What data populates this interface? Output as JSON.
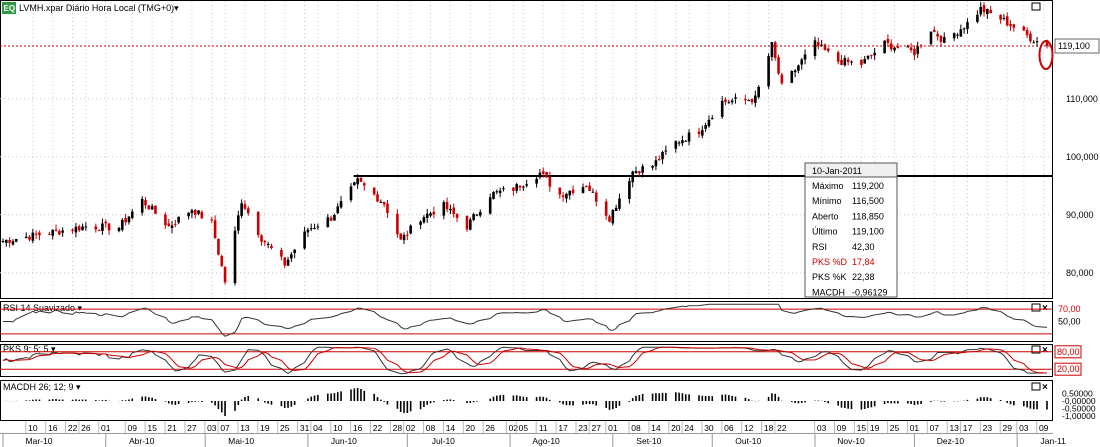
{
  "colors": {
    "bull": "#000000",
    "bear": "#cc0000",
    "rsi_line": "#333333",
    "pks_k": "#333333",
    "pks_d": "#cc0000",
    "ref_line": "#cc0000",
    "support_line": "#000000",
    "price_tag_border": "#666666",
    "highlight_circle": "#cc0000",
    "logo": "#2e9b44"
  },
  "header": {
    "logo": "EQ",
    "title": "LVMH.xpar Diário Hora Local (TMG+0)▾"
  },
  "chart_data": [
    {
      "type": "candlestick",
      "name": "price",
      "ylim": [
        76000,
        126000
      ],
      "yticks": [
        80000,
        90000,
        100000,
        110000
      ],
      "ytick_labels": [
        "80,000",
        "90,000",
        "100,000",
        "110,000"
      ],
      "last_price": 119100,
      "last_price_label": "119,100",
      "support_level": 96700,
      "support_start_date": "2010-06-16",
      "anchors": [
        [
          "2010-03-01",
          85500
        ],
        [
          "2010-03-16",
          87000
        ],
        [
          "2010-03-26",
          88000
        ],
        [
          "2010-04-05",
          87800
        ],
        [
          "2010-04-12",
          92500
        ],
        [
          "2010-04-20",
          88000
        ],
        [
          "2010-04-27",
          91000
        ],
        [
          "2010-05-03",
          88500
        ],
        [
          "2010-05-07",
          78500
        ],
        [
          "2010-05-12",
          92500
        ],
        [
          "2010-05-18",
          86000
        ],
        [
          "2010-05-25",
          81500
        ],
        [
          "2010-06-01",
          87500
        ],
        [
          "2010-06-08",
          89500
        ],
        [
          "2010-06-16",
          95800
        ],
        [
          "2010-06-24",
          92000
        ],
        [
          "2010-06-29",
          85500
        ],
        [
          "2010-07-05",
          89500
        ],
        [
          "2010-07-12",
          91500
        ],
        [
          "2010-07-19",
          88000
        ],
        [
          "2010-07-26",
          93500
        ],
        [
          "2010-08-02",
          94500
        ],
        [
          "2010-08-10",
          97200
        ],
        [
          "2010-08-16",
          93500
        ],
        [
          "2010-08-24",
          95200
        ],
        [
          "2010-08-31",
          89500
        ],
        [
          "2010-09-07",
          97500
        ],
        [
          "2010-09-13",
          98500
        ],
        [
          "2010-09-20",
          102500
        ],
        [
          "2010-09-27",
          104500
        ],
        [
          "2010-10-04",
          109500
        ],
        [
          "2010-10-14",
          110000
        ],
        [
          "2010-10-19",
          119200
        ],
        [
          "2010-10-22",
          112000
        ],
        [
          "2010-11-01",
          119500
        ],
        [
          "2010-11-08",
          116500
        ],
        [
          "2010-11-15",
          116000
        ],
        [
          "2010-11-22",
          119500
        ],
        [
          "2010-12-01",
          118000
        ],
        [
          "2010-12-06",
          122000
        ],
        [
          "2010-12-10",
          120000
        ],
        [
          "2010-12-17",
          123000
        ],
        [
          "2010-12-21",
          125500
        ],
        [
          "2010-12-28",
          123500
        ],
        [
          "2011-01-05",
          120500
        ],
        [
          "2011-01-10",
          119100
        ]
      ]
    },
    {
      "type": "line",
      "name": "rsi",
      "title": "RSI 14 Suavizado ▾",
      "ylim": [
        20,
        80
      ],
      "levels": [
        70,
        30
      ],
      "level_labels": [
        "70,00",
        "50,00"
      ],
      "label_values": [
        70,
        50
      ]
    },
    {
      "type": "line",
      "name": "pks",
      "title": "PKS 9; 5; 5 ▾",
      "ylim": [
        0,
        100
      ],
      "levels": [
        80,
        20
      ],
      "level_labels": [
        "80,00",
        "20,00"
      ]
    },
    {
      "type": "bar",
      "name": "macdh",
      "title": "MACDH 26; 12; 9 ▾",
      "ylim": [
        -1.2,
        1.2
      ],
      "yticks": [
        0.5,
        0,
        -0.5,
        -1.0
      ],
      "ytick_labels": [
        "0,50000",
        "-0,00000",
        "-0,50000",
        "-1,00000"
      ]
    }
  ],
  "x_axis": {
    "start": "2010-03-01",
    "end": "2011-01-10",
    "day_labels": [
      [
        "2010-03-10",
        "10"
      ],
      [
        "2010-03-16",
        "16"
      ],
      [
        "2010-03-22",
        "22"
      ],
      [
        "2010-03-26",
        "26"
      ],
      [
        "2010-04-01",
        "01"
      ],
      [
        "2010-04-09",
        "09"
      ],
      [
        "2010-04-15",
        "15"
      ],
      [
        "2010-04-21",
        "21"
      ],
      [
        "2010-04-27",
        "27"
      ],
      [
        "2010-05-03",
        "03"
      ],
      [
        "2010-05-07",
        "07"
      ],
      [
        "2010-05-13",
        "13"
      ],
      [
        "2010-05-19",
        "19"
      ],
      [
        "2010-05-25",
        "25"
      ],
      [
        "2010-05-31",
        "31"
      ],
      [
        "2010-06-04",
        "04"
      ],
      [
        "2010-06-10",
        "10"
      ],
      [
        "2010-06-16",
        "16"
      ],
      [
        "2010-06-22",
        "22"
      ],
      [
        "2010-06-28",
        "28"
      ],
      [
        "2010-07-02",
        "02"
      ],
      [
        "2010-07-08",
        "08"
      ],
      [
        "2010-07-14",
        "14"
      ],
      [
        "2010-07-20",
        "20"
      ],
      [
        "2010-07-26",
        "26"
      ],
      [
        "2010-08-02",
        "02"
      ],
      [
        "2010-08-05",
        "05"
      ],
      [
        "2010-08-11",
        "11"
      ],
      [
        "2010-08-17",
        "17"
      ],
      [
        "2010-08-23",
        "23"
      ],
      [
        "2010-08-27",
        "27"
      ],
      [
        "2010-09-01",
        "01"
      ],
      [
        "2010-09-08",
        "08"
      ],
      [
        "2010-09-14",
        "14"
      ],
      [
        "2010-09-20",
        "20"
      ],
      [
        "2010-09-24",
        "24"
      ],
      [
        "2010-09-30",
        "30"
      ],
      [
        "2010-10-06",
        "06"
      ],
      [
        "2010-10-12",
        "12"
      ],
      [
        "2010-10-18",
        "18"
      ],
      [
        "2010-10-22",
        "22"
      ],
      [
        "2010-11-03",
        "03"
      ],
      [
        "2010-11-09",
        "09"
      ],
      [
        "2010-11-15",
        "15"
      ],
      [
        "2010-11-19",
        "19"
      ],
      [
        "2010-11-25",
        "25"
      ],
      [
        "2010-12-01",
        "01"
      ],
      [
        "2010-12-07",
        "07"
      ],
      [
        "2010-12-13",
        "13"
      ],
      [
        "2010-12-17",
        "17"
      ],
      [
        "2010-12-23",
        "23"
      ],
      [
        "2010-12-29",
        "29"
      ],
      [
        "2011-01-03",
        "03"
      ],
      [
        "2011-01-09",
        "09"
      ]
    ],
    "month_labels": [
      [
        "2010-03-01",
        "Mar-10"
      ],
      [
        "2010-04-01",
        "Abr-10"
      ],
      [
        "2010-05-01",
        "Mai-10"
      ],
      [
        "2010-06-01",
        "Jun-10"
      ],
      [
        "2010-07-01",
        "Jul-10"
      ],
      [
        "2010-08-01",
        "Ago-10"
      ],
      [
        "2010-09-01",
        "Set-10"
      ],
      [
        "2010-10-01",
        "Out-10"
      ],
      [
        "2010-11-01",
        "Nov-10"
      ],
      [
        "2010-12-01",
        "Dez-10"
      ],
      [
        "2011-01-01",
        "Jan-11"
      ]
    ]
  },
  "info_box": {
    "date": "10-Jan-2011",
    "rows": [
      {
        "label": "Máximo",
        "value": "119,200",
        "highlight": false
      },
      {
        "label": "Mínimo",
        "value": "116,500",
        "highlight": false
      },
      {
        "label": "Aberto",
        "value": "118,850",
        "highlight": false
      },
      {
        "label": "Último",
        "value": "119,100",
        "highlight": false
      },
      {
        "label": "RSI",
        "value": "42,30",
        "highlight": false
      },
      {
        "label": "PKS %D",
        "value": "17,84",
        "highlight": true
      },
      {
        "label": "PKS %K",
        "value": "22,38",
        "highlight": false
      },
      {
        "label": "MACDH",
        "value": "-0,96129",
        "highlight": false
      }
    ]
  }
}
